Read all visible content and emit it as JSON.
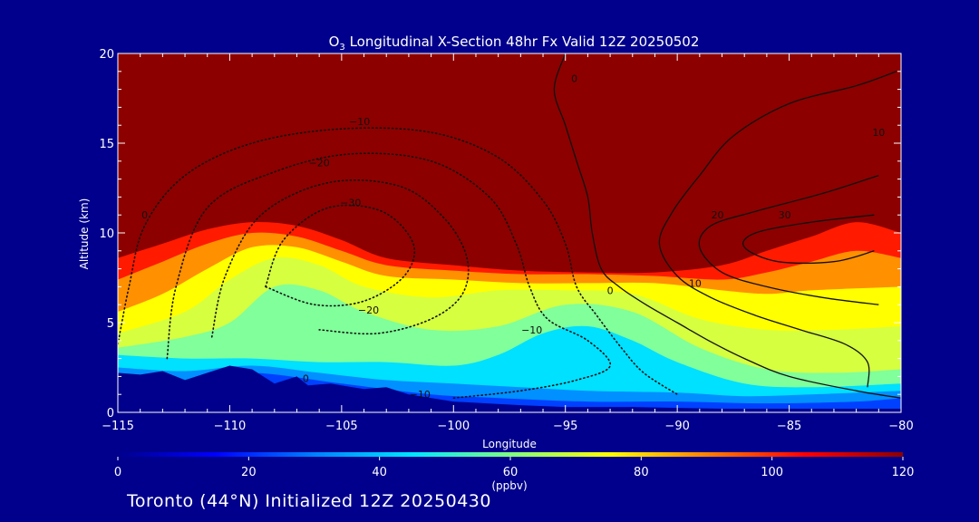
{
  "chart_data": {
    "type": "heatmap",
    "title": "O3 Longitudinal X-Section 48hr  Fx Valid 12Z 20250502",
    "title_prefix": "O",
    "title_subscript": "3",
    "title_rest": " Longitudinal X-Section 48hr  Fx Valid 12Z 20250502",
    "xlabel": "Longitude",
    "ylabel": "Altitude (km)",
    "xlim": [
      -115,
      -80
    ],
    "ylim": [
      0,
      20
    ],
    "xticks": [
      -115,
      -110,
      -105,
      -100,
      -95,
      -90,
      -85,
      -80
    ],
    "xtick_labels": [
      "−115",
      "−110",
      "−105",
      "−100",
      "−95",
      "−90",
      "−85",
      "−80"
    ],
    "yticks": [
      0,
      5,
      10,
      15,
      20
    ],
    "ytick_labels": [
      "0",
      "5",
      "10",
      "15",
      "20"
    ],
    "colorbar": {
      "label": "(ppbv)",
      "ticks": [
        0,
        20,
        40,
        60,
        80,
        100,
        120
      ],
      "tick_labels": [
        "0",
        "20",
        "40",
        "60",
        "80",
        "100",
        "120"
      ],
      "range": [
        0,
        120
      ],
      "colormap": [
        "#00008c",
        "#0000ff",
        "#0080ff",
        "#00e5ff",
        "#80ff80",
        "#ffff00",
        "#ff8000",
        "#ff0000",
        "#8c0000"
      ]
    },
    "fill_layers": [
      {
        "value": 20,
        "color": "#0040ff",
        "points": [
          [
            -115,
            2.0
          ],
          [
            -112,
            1.8
          ],
          [
            -109,
            2.2
          ],
          [
            -105,
            1.6
          ],
          [
            -101,
            1.0
          ],
          [
            -98,
            0.8
          ],
          [
            -94,
            0.6
          ],
          [
            -90,
            0.6
          ],
          [
            -86,
            0.5
          ],
          [
            -82,
            0.6
          ],
          [
            -80,
            0.8
          ]
        ]
      },
      {
        "value": 35,
        "color": "#0090ff",
        "points": [
          [
            -115,
            2.5
          ],
          [
            -112,
            2.3
          ],
          [
            -109,
            2.6
          ],
          [
            -106,
            2.2
          ],
          [
            -103,
            1.8
          ],
          [
            -100,
            1.6
          ],
          [
            -97,
            1.4
          ],
          [
            -94,
            1.2
          ],
          [
            -90,
            1.1
          ],
          [
            -87,
            0.9
          ],
          [
            -84,
            1.0
          ],
          [
            -80,
            1.2
          ]
        ]
      },
      {
        "value": 45,
        "color": "#00e0ff",
        "points": [
          [
            -115,
            3.2
          ],
          [
            -112,
            3.0
          ],
          [
            -109,
            3.0
          ],
          [
            -106,
            2.8
          ],
          [
            -103,
            2.8
          ],
          [
            -100,
            2.6
          ],
          [
            -98,
            3.2
          ],
          [
            -96,
            4.4
          ],
          [
            -94,
            4.8
          ],
          [
            -92,
            4.0
          ],
          [
            -90,
            2.8
          ],
          [
            -87,
            1.6
          ],
          [
            -84,
            1.4
          ],
          [
            -80,
            1.6
          ]
        ]
      },
      {
        "value": 55,
        "color": "#80ff9a",
        "points": [
          [
            -115,
            3.6
          ],
          [
            -112,
            4.2
          ],
          [
            -110,
            5.0
          ],
          [
            -108,
            7.0
          ],
          [
            -106,
            6.8
          ],
          [
            -104,
            5.6
          ],
          [
            -101,
            4.6
          ],
          [
            -98,
            4.8
          ],
          [
            -95,
            6.0
          ],
          [
            -92,
            5.6
          ],
          [
            -89,
            3.6
          ],
          [
            -86,
            2.4
          ],
          [
            -83,
            2.2
          ],
          [
            -80,
            2.4
          ]
        ]
      },
      {
        "value": 65,
        "color": "#d6ff40",
        "points": [
          [
            -115,
            4.4
          ],
          [
            -112,
            5.6
          ],
          [
            -110,
            7.4
          ],
          [
            -108,
            8.6
          ],
          [
            -106,
            8.2
          ],
          [
            -104,
            7.0
          ],
          [
            -101,
            6.4
          ],
          [
            -98,
            6.8
          ],
          [
            -95,
            6.8
          ],
          [
            -92,
            6.6
          ],
          [
            -89,
            5.2
          ],
          [
            -86,
            4.6
          ],
          [
            -83,
            4.6
          ],
          [
            -80,
            4.8
          ]
        ]
      },
      {
        "value": 75,
        "color": "#ffff00",
        "points": [
          [
            -115,
            5.6
          ],
          [
            -113,
            6.6
          ],
          [
            -111,
            8.0
          ],
          [
            -109,
            9.2
          ],
          [
            -107,
            9.2
          ],
          [
            -105,
            8.4
          ],
          [
            -103,
            7.6
          ],
          [
            -100,
            7.4
          ],
          [
            -97,
            7.2
          ],
          [
            -94,
            7.2
          ],
          [
            -91,
            7.2
          ],
          [
            -88,
            6.8
          ],
          [
            -86,
            6.6
          ],
          [
            -84,
            6.8
          ],
          [
            -80,
            7.0
          ]
        ]
      },
      {
        "value": 90,
        "color": "#ff9000",
        "points": [
          [
            -115,
            7.4
          ],
          [
            -113,
            8.4
          ],
          [
            -111,
            9.4
          ],
          [
            -109,
            10.0
          ],
          [
            -107,
            9.8
          ],
          [
            -105,
            9.0
          ],
          [
            -103,
            8.2
          ],
          [
            -100,
            7.9
          ],
          [
            -97,
            7.7
          ],
          [
            -94,
            7.7
          ],
          [
            -91,
            7.6
          ],
          [
            -88,
            7.4
          ],
          [
            -86,
            7.8
          ],
          [
            -84,
            8.4
          ],
          [
            -82,
            9.0
          ],
          [
            -80,
            8.6
          ]
        ]
      },
      {
        "value": 105,
        "color": "#ff1a00",
        "points": [
          [
            -115,
            8.6
          ],
          [
            -113,
            9.4
          ],
          [
            -111,
            10.2
          ],
          [
            -109,
            10.6
          ],
          [
            -107,
            10.4
          ],
          [
            -105,
            9.6
          ],
          [
            -103,
            8.6
          ],
          [
            -100,
            8.2
          ],
          [
            -97,
            7.9
          ],
          [
            -94,
            7.8
          ],
          [
            -91,
            7.8
          ],
          [
            -88,
            8.2
          ],
          [
            -86,
            9.0
          ],
          [
            -84,
            9.8
          ],
          [
            -82,
            10.6
          ],
          [
            -80,
            10.0
          ]
        ]
      }
    ],
    "terrain": {
      "color": "#00008c",
      "points": [
        [
          -115,
          2.2
        ],
        [
          -114,
          2.1
        ],
        [
          -113,
          2.3
        ],
        [
          -112,
          1.8
        ],
        [
          -111,
          2.2
        ],
        [
          -110,
          2.6
        ],
        [
          -109,
          2.4
        ],
        [
          -108,
          1.6
        ],
        [
          -107,
          2.0
        ],
        [
          -106.5,
          1.5
        ],
        [
          -105.5,
          1.6
        ],
        [
          -104,
          1.3
        ],
        [
          -103,
          1.4
        ],
        [
          -102,
          1.0
        ],
        [
          -100,
          0.6
        ],
        [
          -97,
          0.4
        ],
        [
          -95,
          0.3
        ],
        [
          -92,
          0.3
        ],
        [
          -88,
          0.2
        ],
        [
          -84,
          0.2
        ],
        [
          -80,
          0.2
        ]
      ]
    },
    "contours": [
      {
        "value": 0,
        "style": "solid",
        "points": [
          [
            -95,
            20
          ],
          [
            -95.5,
            18
          ],
          [
            -95,
            16
          ],
          [
            -94.5,
            14
          ],
          [
            -94,
            12
          ],
          [
            -93.8,
            10
          ],
          [
            -93.4,
            8
          ],
          [
            -92.6,
            7
          ],
          [
            -91.4,
            6
          ],
          [
            -90,
            5
          ],
          [
            -88.6,
            4
          ],
          [
            -87,
            3
          ],
          [
            -85,
            2
          ],
          [
            -82,
            1.2
          ],
          [
            -80,
            0.8
          ]
        ]
      },
      {
        "value": 10,
        "style": "solid",
        "points": [
          [
            -80.2,
            19
          ],
          [
            -82,
            18.2
          ],
          [
            -85,
            17.2
          ],
          [
            -87.5,
            15.4
          ],
          [
            -89,
            13.2
          ],
          [
            -90.2,
            11.2
          ],
          [
            -90.8,
            9.4
          ],
          [
            -90,
            7.6
          ],
          [
            -88.5,
            6.4
          ],
          [
            -86.5,
            5.4
          ],
          [
            -84.5,
            4.6
          ],
          [
            -82.5,
            3.8
          ],
          [
            -81.5,
            2.8
          ],
          [
            -81.5,
            1.4
          ]
        ]
      },
      {
        "value": 20,
        "style": "solid",
        "points": [
          [
            -81,
            13.2
          ],
          [
            -83.5,
            12.2
          ],
          [
            -86.5,
            11.2
          ],
          [
            -88.5,
            10.4
          ],
          [
            -89,
            9.2
          ],
          [
            -88,
            7.8
          ],
          [
            -86,
            7.0
          ],
          [
            -83.5,
            6.4
          ],
          [
            -81,
            6.0
          ]
        ]
      },
      {
        "value": 30,
        "style": "solid",
        "points": [
          [
            -81.2,
            11.0
          ],
          [
            -84,
            10.6
          ],
          [
            -86.5,
            10.0
          ],
          [
            -87,
            9.2
          ],
          [
            -85.5,
            8.4
          ],
          [
            -83,
            8.4
          ],
          [
            -81.2,
            9.0
          ]
        ]
      },
      {
        "value": 0,
        "style": "dotted",
        "points": [
          [
            -115,
            3.8
          ],
          [
            -114.5,
            7.0
          ],
          [
            -113.8,
            10.4
          ],
          [
            -112,
            13.2
          ],
          [
            -109,
            15.0
          ],
          [
            -105,
            15.8
          ],
          [
            -101,
            15.6
          ],
          [
            -98,
            14.2
          ],
          [
            -96,
            11.8
          ],
          [
            -95,
            9.4
          ],
          [
            -94.5,
            7.0
          ],
          [
            -93.6,
            5.4
          ],
          [
            -92.5,
            3.6
          ],
          [
            -91.5,
            2.2
          ],
          [
            -90,
            1.0
          ]
        ]
      },
      {
        "value": -10,
        "style": "dotted",
        "points": [
          [
            -112.8,
            3.0
          ],
          [
            -112.4,
            7.0
          ],
          [
            -111,
            11.4
          ],
          [
            -108,
            13.4
          ],
          [
            -104.6,
            14.4
          ],
          [
            -101,
            14.0
          ],
          [
            -98.4,
            12.0
          ],
          [
            -97.2,
            9.4
          ],
          [
            -96.6,
            7.0
          ],
          [
            -95.8,
            5.2
          ],
          [
            -94,
            4.0
          ],
          [
            -93,
            2.6
          ],
          [
            -94.5,
            1.8
          ],
          [
            -97,
            1.2
          ],
          [
            -100,
            0.8
          ]
        ]
      },
      {
        "value": -20,
        "style": "dotted",
        "points": [
          [
            -110.8,
            4.2
          ],
          [
            -110.2,
            7.6
          ],
          [
            -108.6,
            11.0
          ],
          [
            -105.6,
            12.8
          ],
          [
            -102.4,
            12.6
          ],
          [
            -100.4,
            10.8
          ],
          [
            -99.4,
            8.6
          ],
          [
            -99.6,
            6.6
          ],
          [
            -101,
            5.2
          ],
          [
            -103.4,
            4.4
          ],
          [
            -106,
            4.6
          ]
        ]
      },
      {
        "value": -30,
        "style": "dotted",
        "points": [
          [
            -108.4,
            7.0
          ],
          [
            -107.6,
            9.6
          ],
          [
            -105.6,
            11.4
          ],
          [
            -103.2,
            11.2
          ],
          [
            -101.8,
            9.4
          ],
          [
            -102.2,
            7.6
          ],
          [
            -104,
            6.2
          ],
          [
            -106.2,
            6.0
          ],
          [
            -108.4,
            7.0
          ]
        ]
      }
    ],
    "contour_labels": [
      {
        "text": "0",
        "x": -94.6,
        "y": 18.4
      },
      {
        "text": "−10",
        "x": -104.2,
        "y": 16.0
      },
      {
        "text": "−20",
        "x": -106.0,
        "y": 13.7
      },
      {
        "text": "−30",
        "x": -104.6,
        "y": 11.5
      },
      {
        "text": "0",
        "x": -113.8,
        "y": 10.8
      },
      {
        "text": "−20",
        "x": -103.8,
        "y": 5.5
      },
      {
        "text": "0",
        "x": -106.6,
        "y": 1.7
      },
      {
        "text": "−10",
        "x": -96.5,
        "y": 4.4
      },
      {
        "text": "−10",
        "x": -101.5,
        "y": 0.8
      },
      {
        "text": "0",
        "x": -93.0,
        "y": 6.6
      },
      {
        "text": "10",
        "x": -89.2,
        "y": 7.0
      },
      {
        "text": "20",
        "x": -88.2,
        "y": 10.8
      },
      {
        "text": "30",
        "x": -85.2,
        "y": 10.8
      },
      {
        "text": "10",
        "x": -81.0,
        "y": 15.4
      }
    ]
  },
  "footer": {
    "text": "Toronto (44°N) Initialized 12Z 20250430"
  }
}
